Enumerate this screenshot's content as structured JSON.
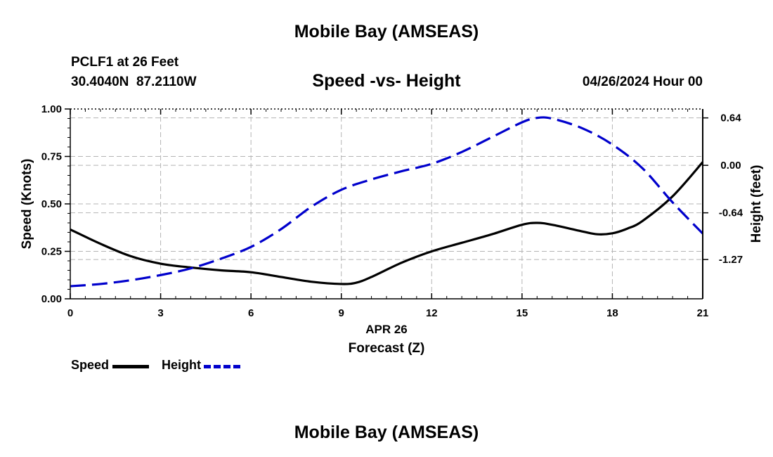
{
  "header": {
    "title": "Mobile Bay (AMSEAS)",
    "station": "PCLF1 at 26 Feet",
    "coords": "30.4040N  87.2110W",
    "datetime": "04/26/2024 Hour 00"
  },
  "footer": {
    "title": "Mobile Bay (AMSEAS)"
  },
  "legend": {
    "items": [
      {
        "label": "Speed",
        "color": "#000000",
        "style": "solid"
      },
      {
        "label": "Height",
        "color": "#0000cc",
        "style": "dashed"
      }
    ]
  },
  "chart_data": {
    "type": "line",
    "title": "Speed -vs- Height",
    "xlabel": "Forecast (Z)",
    "xsublabel": "APR 26",
    "x_ticks": [
      0,
      3,
      6,
      9,
      12,
      15,
      18,
      21
    ],
    "x_tick_labels": [
      "0",
      "3",
      "6",
      "9",
      "12",
      "15",
      "18",
      "21"
    ],
    "xlim": [
      0,
      21
    ],
    "ylabel_left": "Speed (Knots)",
    "ylim_left": [
      0,
      1.0
    ],
    "y_ticks_left": [
      "0.00",
      "0.25",
      "0.50",
      "0.75",
      "1.00"
    ],
    "ylabel_right": "Height (feet)",
    "y_ticks_right": [
      {
        "label": "-1.27",
        "value": -1.27
      },
      {
        "label": "-0.64",
        "value": -0.64
      },
      {
        "label": "0.00",
        "value": 0.0
      },
      {
        "label": "0.64",
        "value": 0.64
      }
    ],
    "ylim_right": [
      -1.8,
      0.76
    ],
    "grid": true,
    "legend_position": "bottom-left",
    "series": [
      {
        "name": "Speed",
        "axis": "left",
        "color": "#000000",
        "dash": "solid",
        "x": [
          0,
          1,
          2,
          3,
          4,
          5,
          6,
          7,
          8,
          9,
          9.5,
          10,
          11,
          12,
          13,
          14,
          15,
          15.5,
          16,
          17,
          17.5,
          18,
          18.5,
          19,
          20,
          21
        ],
        "values": [
          0.365,
          0.29,
          0.225,
          0.185,
          0.165,
          0.15,
          0.14,
          0.115,
          0.09,
          0.078,
          0.085,
          0.115,
          0.19,
          0.25,
          0.295,
          0.34,
          0.39,
          0.4,
          0.39,
          0.355,
          0.34,
          0.345,
          0.37,
          0.41,
          0.54,
          0.72
        ]
      },
      {
        "name": "Height",
        "axis": "right",
        "color": "#0000cc",
        "dash": "dashed",
        "x": [
          0,
          1,
          2,
          3,
          4,
          5,
          6,
          7,
          8,
          9,
          10,
          11,
          12,
          13,
          14,
          15,
          15.5,
          16,
          17,
          18,
          19,
          20,
          21
        ],
        "values": [
          -1.63,
          -1.6,
          -1.55,
          -1.48,
          -1.39,
          -1.26,
          -1.1,
          -0.86,
          -0.56,
          -0.33,
          -0.19,
          -0.08,
          0.02,
          0.18,
          0.38,
          0.58,
          0.64,
          0.63,
          0.5,
          0.28,
          -0.04,
          -0.5,
          -0.92
        ]
      }
    ]
  }
}
